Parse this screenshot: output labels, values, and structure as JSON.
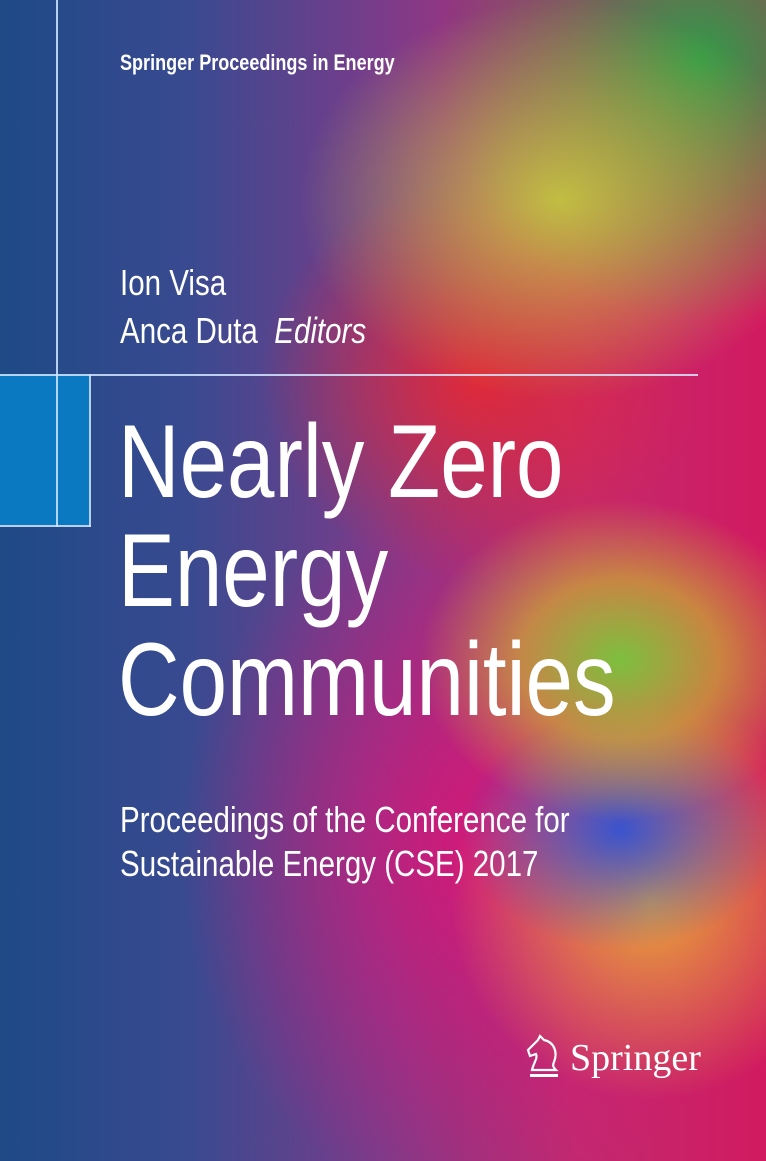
{
  "series": "Springer Proceedings in Energy",
  "editors": [
    "Ion Visa",
    "Anca Duta"
  ],
  "editors_label": "Editors",
  "title_lines": [
    "Nearly Zero",
    "Energy",
    "Communities"
  ],
  "subtitle_lines": [
    "Proceedings of the Conference for",
    "Sustainable Energy (CSE) 2017"
  ],
  "publisher": "Springer",
  "colors": {
    "accent_block": "#0b78c2"
  }
}
